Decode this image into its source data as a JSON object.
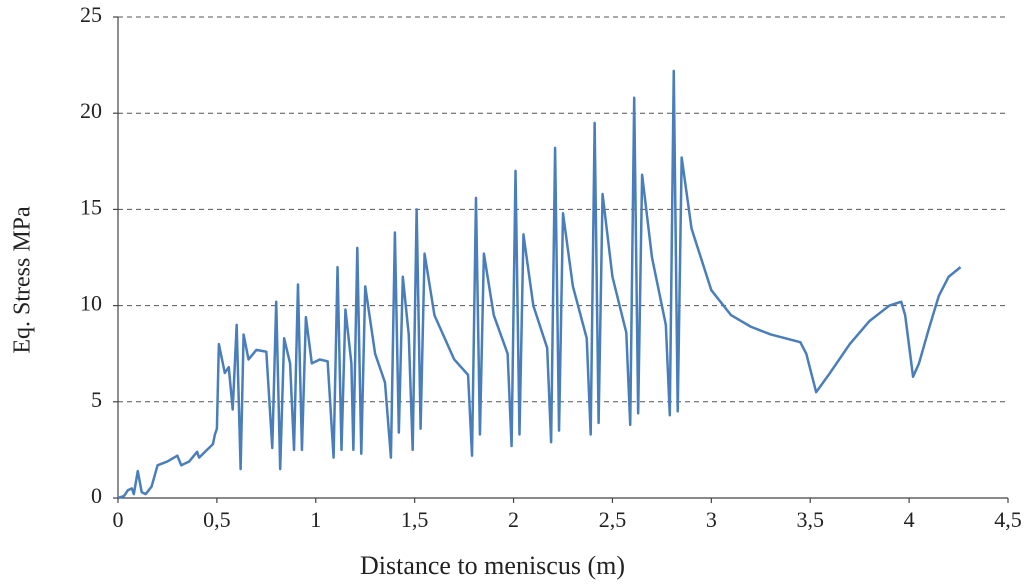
{
  "chart_data": {
    "type": "line",
    "xlabel": "Distance to meniscus (m)",
    "ylabel": "Eq. Stress MPa",
    "color": "#4a7ebb",
    "grid": true,
    "xlim": [
      0,
      4.5
    ],
    "ylim": [
      0,
      25
    ],
    "xticks": [
      0,
      {
        "value": 0.5,
        "label": "0,5"
      },
      1,
      {
        "value": 1.5,
        "label": "1,5"
      },
      2,
      {
        "value": 2.5,
        "label": "2,5"
      },
      3,
      {
        "value": 3.5,
        "label": "3,5"
      },
      4,
      {
        "value": 4.5,
        "label": "4,5"
      }
    ],
    "yticks": [
      0,
      5,
      10,
      15,
      20,
      25
    ],
    "x": [
      0,
      0.03,
      0.05,
      0.07,
      0.08,
      0.1,
      0.12,
      0.14,
      0.17,
      0.2,
      0.25,
      0.3,
      0.32,
      0.36,
      0.4,
      0.41,
      0.45,
      0.48,
      0.49,
      0.5,
      0.51,
      0.54,
      0.56,
      0.58,
      0.6,
      0.62,
      0.635,
      0.66,
      0.7,
      0.75,
      0.78,
      0.8,
      0.82,
      0.84,
      0.87,
      0.89,
      0.91,
      0.93,
      0.95,
      0.98,
      1.02,
      1.06,
      1.09,
      1.11,
      1.13,
      1.15,
      1.18,
      1.19,
      1.21,
      1.23,
      1.25,
      1.3,
      1.35,
      1.38,
      1.4,
      1.42,
      1.44,
      1.47,
      1.49,
      1.51,
      1.53,
      1.55,
      1.6,
      1.7,
      1.77,
      1.79,
      1.81,
      1.83,
      1.85,
      1.9,
      1.97,
      1.99,
      2.01,
      2.03,
      2.05,
      2.1,
      2.17,
      2.19,
      2.21,
      2.23,
      2.25,
      2.3,
      2.37,
      2.39,
      2.41,
      2.43,
      2.45,
      2.5,
      2.57,
      2.59,
      2.61,
      2.63,
      2.65,
      2.7,
      2.77,
      2.79,
      2.81,
      2.83,
      2.85,
      2.9,
      3.0,
      3.1,
      3.2,
      3.3,
      3.45,
      3.48,
      3.53,
      3.6,
      3.7,
      3.8,
      3.9,
      3.96,
      3.98,
      4.02,
      4.05,
      4.1,
      4.15,
      4.2,
      4.26
    ],
    "values": [
      0,
      0.1,
      0.4,
      0.5,
      0.2,
      1.4,
      0.3,
      0.2,
      0.6,
      1.7,
      1.9,
      2.2,
      1.7,
      1.9,
      2.4,
      2.1,
      2.5,
      2.8,
      3.3,
      3.6,
      8.0,
      6.5,
      6.8,
      4.6,
      9.0,
      1.5,
      8.5,
      7.2,
      7.7,
      7.6,
      2.6,
      10.2,
      1.5,
      8.3,
      7.0,
      2.5,
      11.1,
      2.5,
      9.4,
      7.0,
      7.2,
      7.1,
      2.1,
      12.0,
      2.5,
      9.8,
      7.0,
      2.5,
      13.0,
      2.3,
      11.0,
      7.5,
      6.0,
      2.1,
      13.8,
      3.4,
      11.5,
      8.5,
      2.5,
      15.0,
      3.6,
      12.7,
      9.5,
      7.2,
      6.4,
      2.2,
      15.6,
      3.3,
      12.7,
      9.5,
      7.5,
      2.7,
      17.0,
      3.3,
      13.7,
      10.0,
      7.8,
      2.9,
      18.2,
      3.5,
      14.8,
      11.0,
      8.3,
      3.3,
      19.5,
      3.9,
      15.8,
      11.5,
      8.6,
      3.8,
      20.8,
      4.4,
      16.8,
      12.5,
      9.0,
      4.3,
      22.2,
      4.5,
      17.7,
      14.0,
      10.8,
      9.5,
      8.9,
      8.5,
      8.1,
      7.5,
      5.5,
      6.5,
      8.0,
      9.2,
      10.0,
      10.2,
      9.5,
      6.3,
      7.0,
      8.8,
      10.5,
      11.5,
      12.0
    ]
  }
}
